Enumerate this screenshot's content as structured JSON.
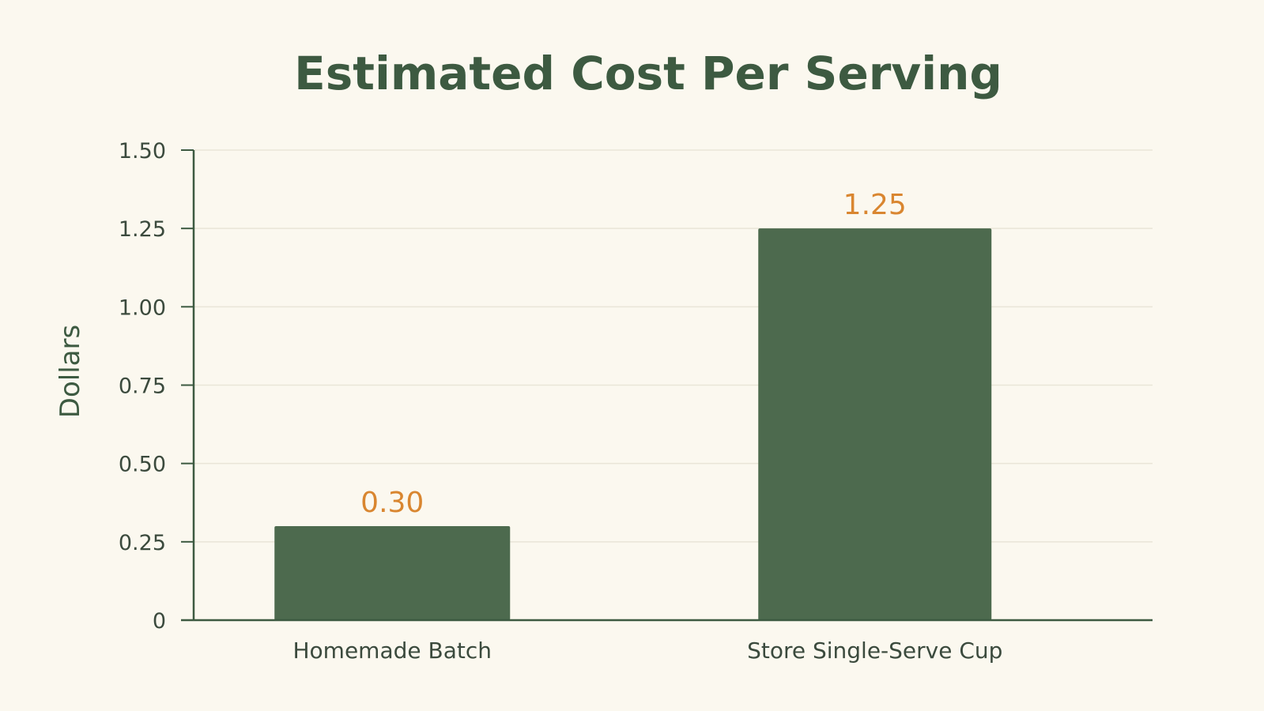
{
  "chart_data": {
    "type": "bar",
    "title": "Estimated Cost Per Serving",
    "xlabel": "",
    "ylabel": "Dollars",
    "categories": [
      "Homemade Batch",
      "Store Single-Serve Cup"
    ],
    "values": [
      0.3,
      1.25
    ],
    "data_labels": [
      "0.30",
      "1.25"
    ],
    "ylim": [
      0,
      1.5
    ],
    "yticks": [
      0,
      0.25,
      0.5,
      0.75,
      1.0,
      1.25,
      1.5
    ],
    "ytick_labels": [
      "0",
      "0.25",
      "0.50",
      "0.75",
      "1.00",
      "1.25",
      "1.50"
    ],
    "grid": true,
    "legend": "none",
    "colors": {
      "bar": "#4d6a4e",
      "data_label": "#d98630",
      "title": "#3d5a41",
      "background": "#fbf8ef"
    }
  }
}
